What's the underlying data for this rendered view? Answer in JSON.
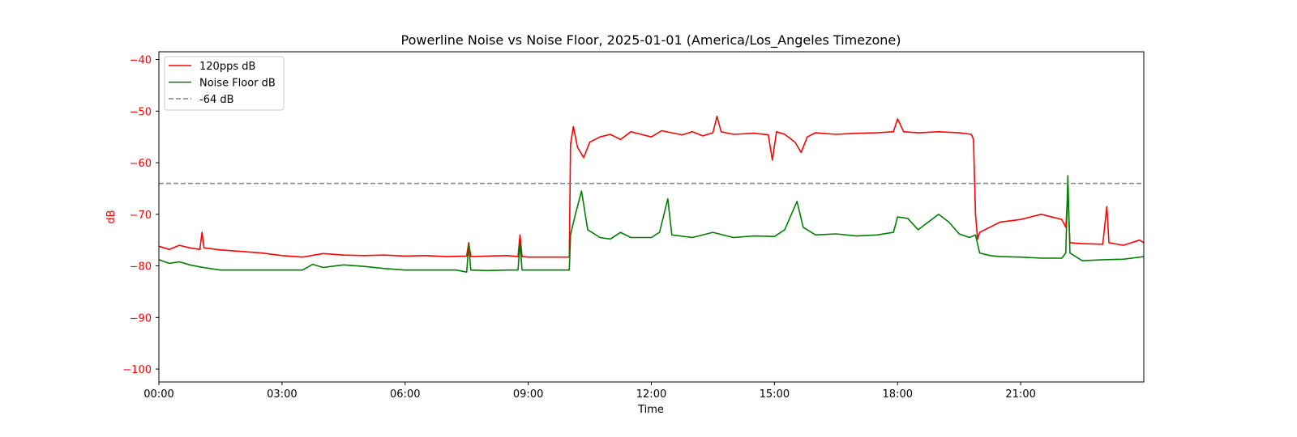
{
  "chart_data": {
    "type": "line",
    "title": "Powerline Noise vs Noise Floor, 2025-01-01 (America/Los_Angeles Timezone)",
    "xlabel": "Time",
    "ylabel": "dB",
    "xlim_hours": [
      0,
      24
    ],
    "ylim": [
      -102.5,
      -38.5
    ],
    "x_ticks": [
      {
        "hour": 0,
        "label": "00:00"
      },
      {
        "hour": 3,
        "label": "03:00"
      },
      {
        "hour": 6,
        "label": "06:00"
      },
      {
        "hour": 9,
        "label": "09:00"
      },
      {
        "hour": 12,
        "label": "12:00"
      },
      {
        "hour": 15,
        "label": "15:00"
      },
      {
        "hour": 18,
        "label": "18:00"
      },
      {
        "hour": 21,
        "label": "21:00"
      }
    ],
    "y_ticks": [
      {
        "value": -40,
        "label": "−40"
      },
      {
        "value": -50,
        "label": "−50"
      },
      {
        "value": -60,
        "label": "−60"
      },
      {
        "value": -70,
        "label": "−70"
      },
      {
        "value": -80,
        "label": "−80"
      },
      {
        "value": -90,
        "label": "−90"
      },
      {
        "value": -100,
        "label": "−100"
      }
    ],
    "ytick_color": "#ff0000",
    "ylabel_color": "#ff0000",
    "grid": false,
    "legend_position": "top-left",
    "series": [
      {
        "name": "120pps dB",
        "color": "#ff0000",
        "style": "solid",
        "points": [
          [
            0.0,
            -76.2
          ],
          [
            0.25,
            -76.8
          ],
          [
            0.5,
            -76.0
          ],
          [
            0.75,
            -76.5
          ],
          [
            1.0,
            -76.8
          ],
          [
            1.05,
            -73.5
          ],
          [
            1.1,
            -76.5
          ],
          [
            1.5,
            -76.9
          ],
          [
            2.0,
            -77.2
          ],
          [
            2.5,
            -77.5
          ],
          [
            3.0,
            -78.0
          ],
          [
            3.5,
            -78.3
          ],
          [
            4.0,
            -77.6
          ],
          [
            4.5,
            -77.9
          ],
          [
            5.0,
            -78.0
          ],
          [
            5.5,
            -77.9
          ],
          [
            6.0,
            -78.1
          ],
          [
            6.5,
            -78.0
          ],
          [
            7.0,
            -78.2
          ],
          [
            7.5,
            -78.1
          ],
          [
            7.55,
            -75.5
          ],
          [
            7.6,
            -78.2
          ],
          [
            8.0,
            -78.1
          ],
          [
            8.5,
            -78.0
          ],
          [
            8.75,
            -78.2
          ],
          [
            8.8,
            -74.0
          ],
          [
            8.85,
            -78.2
          ],
          [
            9.0,
            -78.3
          ],
          [
            9.5,
            -78.3
          ],
          [
            10.0,
            -78.3
          ],
          [
            10.03,
            -56.5
          ],
          [
            10.1,
            -53.0
          ],
          [
            10.2,
            -57.0
          ],
          [
            10.35,
            -59.0
          ],
          [
            10.5,
            -56.0
          ],
          [
            10.75,
            -55.0
          ],
          [
            11.0,
            -54.5
          ],
          [
            11.25,
            -55.5
          ],
          [
            11.5,
            -54.0
          ],
          [
            11.75,
            -54.5
          ],
          [
            12.0,
            -55.0
          ],
          [
            12.25,
            -53.8
          ],
          [
            12.5,
            -54.2
          ],
          [
            12.75,
            -54.6
          ],
          [
            13.0,
            -54.0
          ],
          [
            13.25,
            -54.8
          ],
          [
            13.5,
            -54.2
          ],
          [
            13.6,
            -51.0
          ],
          [
            13.7,
            -54.0
          ],
          [
            14.0,
            -54.5
          ],
          [
            14.5,
            -54.3
          ],
          [
            14.85,
            -54.6
          ],
          [
            14.95,
            -59.5
          ],
          [
            15.05,
            -54.0
          ],
          [
            15.25,
            -54.5
          ],
          [
            15.5,
            -56.0
          ],
          [
            15.65,
            -58.0
          ],
          [
            15.8,
            -55.0
          ],
          [
            16.0,
            -54.2
          ],
          [
            16.5,
            -54.5
          ],
          [
            17.0,
            -54.3
          ],
          [
            17.5,
            -54.2
          ],
          [
            17.9,
            -54.0
          ],
          [
            18.0,
            -51.5
          ],
          [
            18.15,
            -54.0
          ],
          [
            18.5,
            -54.2
          ],
          [
            19.0,
            -54.0
          ],
          [
            19.5,
            -54.2
          ],
          [
            19.8,
            -54.5
          ],
          [
            19.85,
            -55.5
          ],
          [
            19.9,
            -70.0
          ],
          [
            19.95,
            -74.8
          ],
          [
            20.0,
            -73.5
          ],
          [
            20.25,
            -72.5
          ],
          [
            20.5,
            -71.5
          ],
          [
            21.0,
            -71.0
          ],
          [
            21.5,
            -70.0
          ],
          [
            22.0,
            -71.0
          ],
          [
            22.1,
            -72.5
          ],
          [
            22.15,
            -66.0
          ],
          [
            22.2,
            -75.5
          ],
          [
            22.5,
            -75.7
          ],
          [
            23.0,
            -75.8
          ],
          [
            23.1,
            -68.5
          ],
          [
            23.15,
            -75.5
          ],
          [
            23.5,
            -76.0
          ],
          [
            23.9,
            -75.0
          ],
          [
            24.0,
            -75.5
          ]
        ]
      },
      {
        "name": "Noise Floor dB",
        "color": "#008000",
        "style": "solid",
        "points": [
          [
            0.0,
            -78.8
          ],
          [
            0.25,
            -79.5
          ],
          [
            0.5,
            -79.2
          ],
          [
            0.75,
            -79.8
          ],
          [
            1.0,
            -80.2
          ],
          [
            1.25,
            -80.5
          ],
          [
            1.5,
            -80.8
          ],
          [
            2.0,
            -80.8
          ],
          [
            3.0,
            -80.8
          ],
          [
            3.5,
            -80.8
          ],
          [
            3.75,
            -79.7
          ],
          [
            4.0,
            -80.3
          ],
          [
            4.5,
            -79.8
          ],
          [
            5.0,
            -80.1
          ],
          [
            5.5,
            -80.5
          ],
          [
            6.0,
            -80.8
          ],
          [
            6.5,
            -80.8
          ],
          [
            7.0,
            -80.8
          ],
          [
            7.25,
            -80.8
          ],
          [
            7.5,
            -81.2
          ],
          [
            7.55,
            -76.0
          ],
          [
            7.6,
            -80.8
          ],
          [
            8.0,
            -80.9
          ],
          [
            8.5,
            -80.8
          ],
          [
            8.75,
            -80.8
          ],
          [
            8.8,
            -75.5
          ],
          [
            8.85,
            -80.8
          ],
          [
            9.5,
            -80.8
          ],
          [
            10.0,
            -80.8
          ],
          [
            10.03,
            -74.0
          ],
          [
            10.15,
            -70.0
          ],
          [
            10.3,
            -65.5
          ],
          [
            10.45,
            -73.0
          ],
          [
            10.75,
            -74.5
          ],
          [
            11.0,
            -74.8
          ],
          [
            11.25,
            -73.5
          ],
          [
            11.5,
            -74.5
          ],
          [
            12.0,
            -74.5
          ],
          [
            12.2,
            -73.5
          ],
          [
            12.4,
            -67.0
          ],
          [
            12.5,
            -74.0
          ],
          [
            13.0,
            -74.5
          ],
          [
            13.5,
            -73.5
          ],
          [
            14.0,
            -74.5
          ],
          [
            14.5,
            -74.2
          ],
          [
            15.0,
            -74.3
          ],
          [
            15.25,
            -73.0
          ],
          [
            15.55,
            -67.5
          ],
          [
            15.7,
            -72.5
          ],
          [
            16.0,
            -74.0
          ],
          [
            16.5,
            -73.8
          ],
          [
            17.0,
            -74.2
          ],
          [
            17.5,
            -74.0
          ],
          [
            17.9,
            -73.5
          ],
          [
            18.0,
            -70.5
          ],
          [
            18.25,
            -70.8
          ],
          [
            18.5,
            -73.0
          ],
          [
            18.75,
            -71.5
          ],
          [
            19.0,
            -70.0
          ],
          [
            19.25,
            -71.5
          ],
          [
            19.5,
            -73.8
          ],
          [
            19.75,
            -74.5
          ],
          [
            19.9,
            -74.0
          ],
          [
            20.0,
            -77.5
          ],
          [
            20.25,
            -78.0
          ],
          [
            20.5,
            -78.2
          ],
          [
            21.0,
            -78.3
          ],
          [
            21.5,
            -78.5
          ],
          [
            22.0,
            -78.5
          ],
          [
            22.1,
            -77.5
          ],
          [
            22.15,
            -62.5
          ],
          [
            22.2,
            -77.5
          ],
          [
            22.5,
            -79.0
          ],
          [
            23.0,
            -78.8
          ],
          [
            23.5,
            -78.7
          ],
          [
            24.0,
            -78.2
          ]
        ]
      },
      {
        "name": "-64 dB",
        "color": "#808080",
        "style": "dashed",
        "points": [
          [
            0.0,
            -64
          ],
          [
            24.0,
            -64
          ]
        ]
      }
    ]
  }
}
